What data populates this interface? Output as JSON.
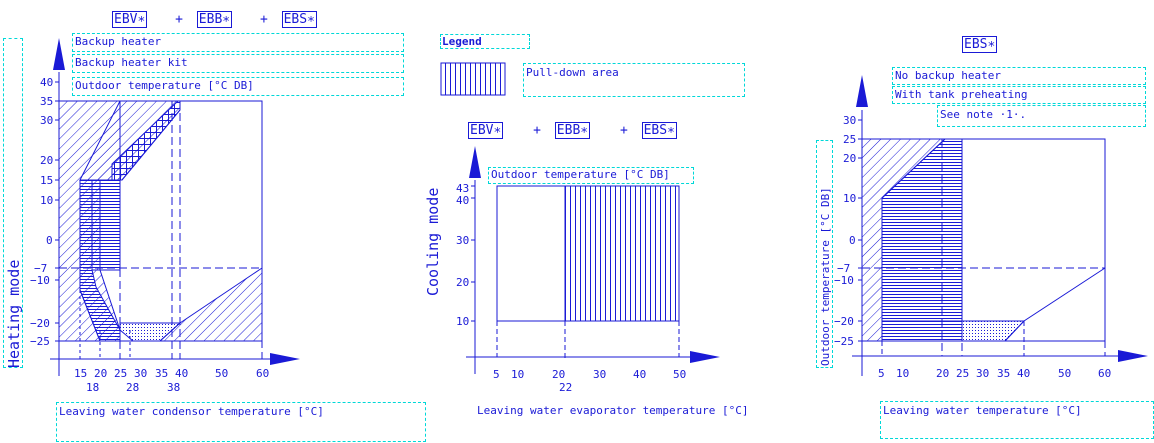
{
  "left": {
    "header": {
      "a": "EBV∗",
      "b": "EBB∗",
      "c": "EBS∗",
      "plus": "+"
    },
    "notes": [
      "Backup heater",
      "Backup heater kit",
      "Outdoor temperature [°C DB]"
    ],
    "mode": "Heating mode",
    "xlabel": "Leaving water condensor temperature [°C]",
    "yticks": [
      "40",
      "35",
      "30",
      "20",
      "15",
      "10",
      "0",
      "−7",
      "−10",
      "−20",
      "−25"
    ],
    "xticks_top": [
      "15",
      "20",
      "25",
      "30",
      "35",
      "40",
      "50",
      "60"
    ],
    "xticks_bottom": [
      "18",
      "28",
      "38"
    ]
  },
  "legend": {
    "title": "Legend",
    "item": "Pull-down area"
  },
  "middle": {
    "header": {
      "a": "EBV∗",
      "b": "EBB∗",
      "c": "EBS∗",
      "plus": "+"
    },
    "title": "Outdoor temperature [°C DB]",
    "mode": "Cooling mode",
    "xlabel": "Leaving water evaporator temperature [°C]",
    "yticks": [
      "43",
      "40",
      "30",
      "20",
      "10"
    ],
    "xticks": [
      "5",
      "10",
      "20",
      "30",
      "40",
      "50"
    ],
    "xtick_below": "22"
  },
  "right": {
    "header": "EBS∗",
    "notes": [
      "No backup heater",
      "With tank preheating",
      "See note ·1·."
    ],
    "ylabel": "Outdoor temperature [°C DB]",
    "xlabel": "Leaving water temperature [°C]",
    "yticks": [
      "30",
      "25",
      "20",
      "10",
      "0",
      "−7",
      "−10",
      "−20",
      "−25"
    ],
    "xticks": [
      "5",
      "10",
      "20",
      "25",
      "30",
      "35",
      "40",
      "50",
      "60"
    ]
  }
}
